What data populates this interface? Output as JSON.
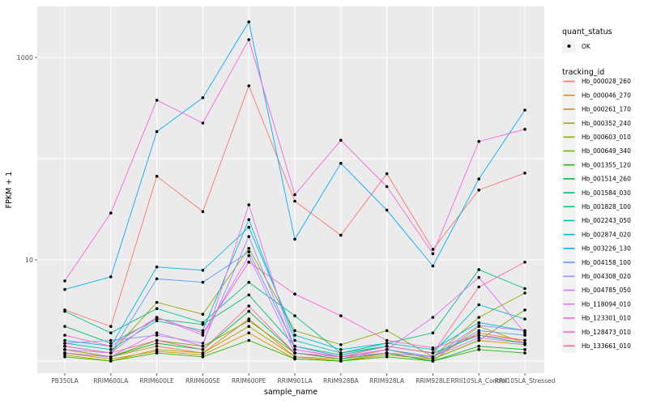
{
  "figure": {
    "background": "#FFFFFF",
    "panel_background": "#EBEBEB",
    "gridline_color": "#FFFFFF",
    "point_color": "#000000",
    "legend_key_fill": "#F2F2F2",
    "axis_text_color": "#4D4D4D",
    "tick_mark_color": "#333333"
  },
  "legend": {
    "quant_status_title": "quant_status",
    "quant_status_items": [
      {
        "label": "OK",
        "marker": "point-icon"
      }
    ],
    "tracking_id_title": "tracking_id"
  },
  "chart_data": {
    "type": "line",
    "title": "",
    "xlabel": "sample_name",
    "ylabel": "FPKM + 1",
    "y_scale": "log10",
    "ylim": [
      0.74,
      3200
    ],
    "y_ticks": [
      {
        "value": 10,
        "label": "10"
      },
      {
        "value": 1000,
        "label": "1000"
      }
    ],
    "y_gridlines": [
      1,
      10,
      100,
      1000
    ],
    "grid": true,
    "legend_position": "right",
    "markers": "black points at every observation (quant_status = OK)",
    "categories": [
      "PB350LA",
      "RRIM600LA",
      "RRIM600LE",
      "RRIM600SE",
      "RRIM600PE",
      "RRIM901LA",
      "RRIM928BA",
      "RRIM928LA",
      "RRIM928LE",
      "RRII105LA_Control",
      "RRII105LA_Stressed"
    ],
    "series": [
      {
        "tracking_id": "Hb_000028_260",
        "color": "#F8766D",
        "values": [
          3.2,
          2.2,
          67,
          30,
          525,
          38,
          17.5,
          71,
          12.7,
          49,
          72
        ]
      },
      {
        "tracking_id": "Hb_000046_270",
        "color": "#E88526",
        "values": [
          1.3,
          1.1,
          1.4,
          1.2,
          2.6,
          1.1,
          1.05,
          1.3,
          1.1,
          1.9,
          1.6
        ]
      },
      {
        "tracking_id": "Hb_000261_170",
        "color": "#D39200",
        "values": [
          1.2,
          1.05,
          1.25,
          1.15,
          1.9,
          1.05,
          1.0,
          1.15,
          1.05,
          1.6,
          1.45
        ]
      },
      {
        "tracking_id": "Hb_000352_240",
        "color": "#B79F00",
        "values": [
          1.15,
          1.0,
          1.3,
          1.2,
          2.2,
          1.1,
          1.0,
          1.2,
          1.0,
          2.2,
          1.5
        ]
      },
      {
        "tracking_id": "Hb_000603_010",
        "color": "#93AA00",
        "values": [
          1.4,
          1.2,
          3.8,
          2.9,
          13,
          2.0,
          1.45,
          2.0,
          1.1,
          2.7,
          4.7
        ]
      },
      {
        "tracking_id": "Hb_000649_340",
        "color": "#6FB000",
        "values": [
          1.3,
          1.1,
          1.6,
          1.4,
          2.5,
          1.2,
          1.1,
          1.3,
          1.05,
          1.6,
          3.2
        ]
      },
      {
        "tracking_id": "Hb_001355_120",
        "color": "#2BB600",
        "values": [
          1.1,
          1.0,
          1.2,
          1.1,
          1.6,
          1.05,
          1.0,
          1.1,
          1.0,
          1.3,
          1.2
        ]
      },
      {
        "tracking_id": "Hb_001514_260",
        "color": "#00BA38",
        "values": [
          1.2,
          1.1,
          1.5,
          1.3,
          3.1,
          1.2,
          1.05,
          1.2,
          1.0,
          1.4,
          1.3
        ]
      },
      {
        "tracking_id": "Hb_001584_030",
        "color": "#00BE6C",
        "values": [
          2.2,
          1.5,
          2.6,
          2.3,
          4.5,
          1.4,
          1.15,
          1.4,
          1.2,
          1.8,
          1.5
        ]
      },
      {
        "tracking_id": "Hb_001828_100",
        "color": "#00C094",
        "values": [
          3.1,
          1.9,
          3.3,
          2.4,
          6.0,
          2.8,
          1.2,
          1.5,
          1.9,
          8.0,
          5.2
        ]
      },
      {
        "tracking_id": "Hb_002243_050",
        "color": "#00BFC4",
        "values": [
          1.5,
          1.3,
          2.5,
          2.0,
          25,
          1.6,
          1.2,
          1.4,
          1.2,
          3.6,
          2.6
        ]
      },
      {
        "tracking_id": "Hb_002874_020",
        "color": "#00B8E5",
        "values": [
          1.6,
          1.4,
          8.5,
          7.9,
          21,
          1.8,
          1.3,
          1.5,
          1.3,
          2.4,
          2.0
        ]
      },
      {
        "tracking_id": "Hb_003226_130",
        "color": "#00ACFC",
        "values": [
          5.1,
          6.8,
          185,
          400,
          2250,
          16,
          90,
          31,
          8.7,
          63,
          302
        ]
      },
      {
        "tracking_id": "Hb_004158_100",
        "color": "#619CFF",
        "values": [
          1.4,
          1.2,
          6.5,
          6.0,
          12,
          1.4,
          1.1,
          1.3,
          1.1,
          2.0,
          1.8
        ]
      },
      {
        "tracking_id": "Hb_004308_020",
        "color": "#9F8CFF",
        "values": [
          1.5,
          1.6,
          1.8,
          1.5,
          17,
          1.3,
          1.1,
          1.2,
          1.1,
          2.25,
          2.0
        ]
      },
      {
        "tracking_id": "Hb_004785_050",
        "color": "#C77CFF",
        "values": [
          1.3,
          1.2,
          2.7,
          1.8,
          11,
          1.2,
          1.1,
          1.2,
          1.1,
          1.7,
          1.5
        ]
      },
      {
        "tracking_id": "Hb_118094_010",
        "color": "#E36EF6",
        "values": [
          1.2,
          1.1,
          1.9,
          1.4,
          35,
          1.3,
          1.1,
          1.3,
          2.7,
          6.7,
          1.9
        ]
      },
      {
        "tracking_id": "Hb_123301_010",
        "color": "#F564E3",
        "values": [
          6.2,
          29,
          378,
          225,
          1500,
          44,
          152,
          53,
          11.5,
          148,
          195
        ]
      },
      {
        "tracking_id": "Hb_128473_010",
        "color": "#FF61C9",
        "values": [
          1.8,
          1.4,
          2.7,
          1.9,
          9.5,
          4.6,
          2.8,
          1.6,
          1.35,
          1.8,
          1.6
        ]
      },
      {
        "tracking_id": "Hb_133661_010",
        "color": "#FF66A8",
        "values": [
          1.4,
          1.2,
          1.6,
          1.3,
          3.5,
          1.2,
          1.1,
          1.4,
          1.2,
          5.4,
          9.5
        ]
      }
    ]
  }
}
